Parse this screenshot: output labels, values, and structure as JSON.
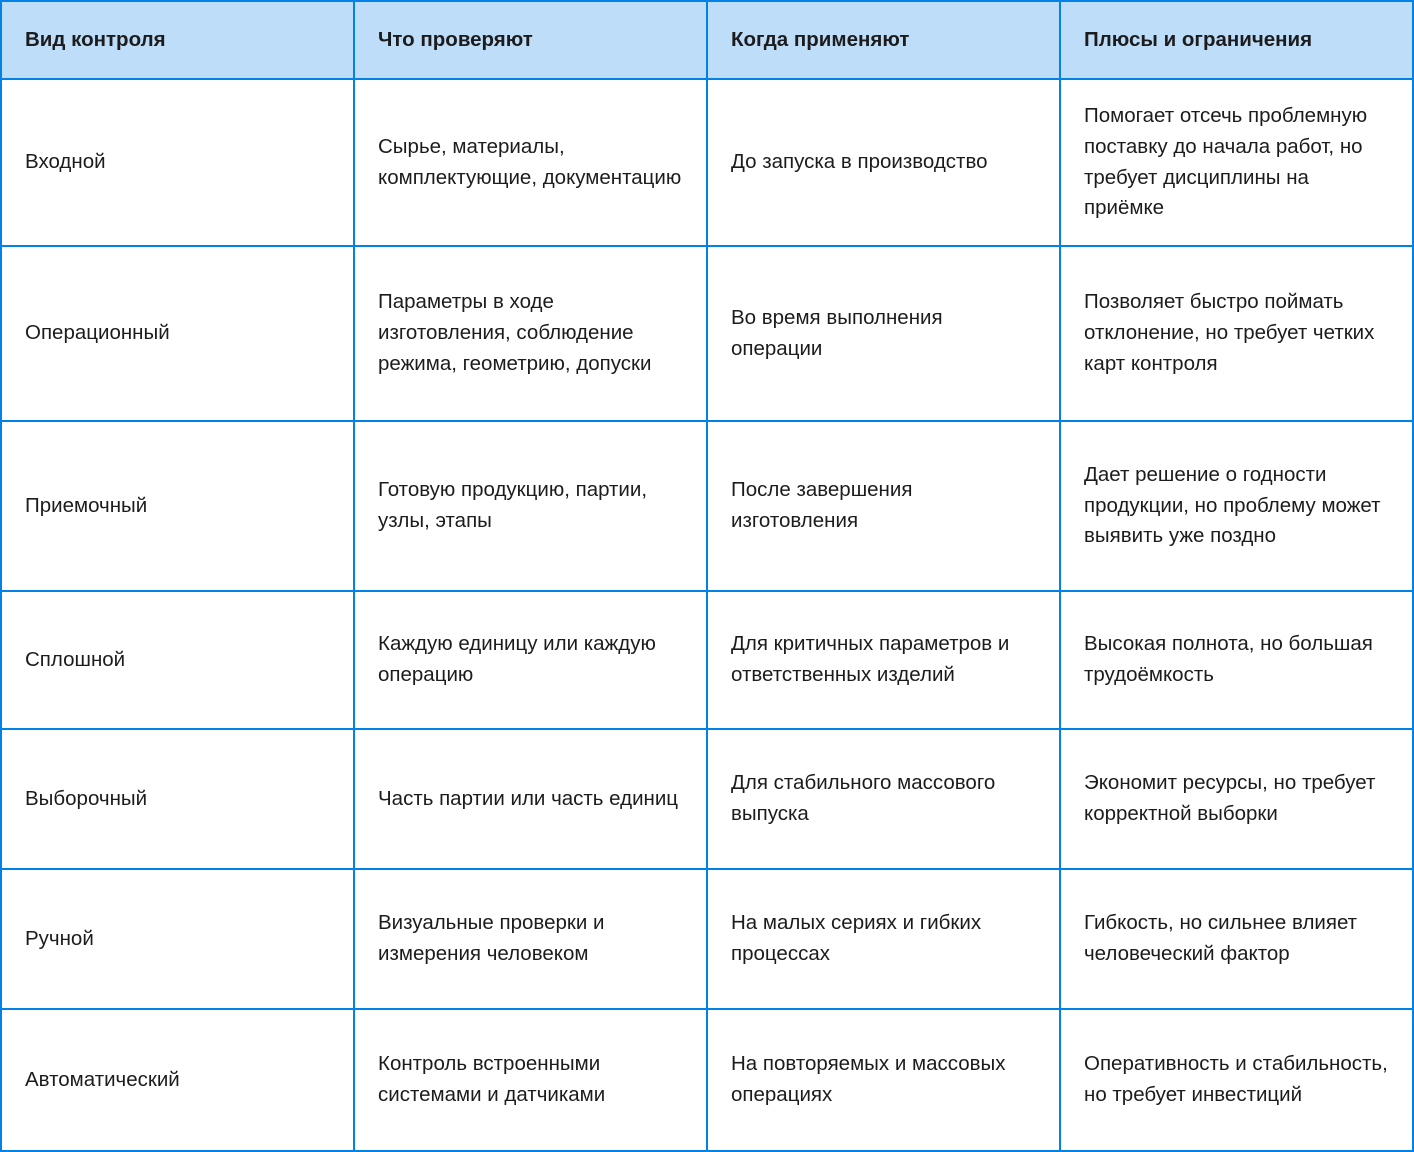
{
  "table": {
    "columns": [
      "Вид контроля",
      "Что проверяют",
      "Когда применяют",
      "Плюсы и ограничения"
    ],
    "rows": [
      {
        "cells": [
          "Входной",
          "Сырье, материалы, комплектующие, документацию",
          "До запуска в производство",
          "Помогает отсечь проблемную поставку до начала работ, но требует дисциплины на приёмке"
        ]
      },
      {
        "cells": [
          "Операционный",
          "Параметры в ходе изготовления, соблюдение режима, геометрию, допуски",
          "Во время выполнения операции",
          "Позволяет быстро поймать отклонение, но требует четких карт контроля"
        ]
      },
      {
        "cells": [
          "Приемочный",
          "Готовую продукцию, партии, узлы, этапы",
          "После завершения изготовления",
          "Дает решение о годности продукции, но проблему может выявить уже поздно"
        ]
      },
      {
        "cells": [
          "Сплошной",
          "Каждую единицу или каждую операцию",
          "Для критичных параметров и ответственных изделий",
          "Высокая полнота, но большая трудоёмкость"
        ]
      },
      {
        "cells": [
          "Выборочный",
          "Часть партии или часть единиц",
          "Для стабильного массового выпуска",
          "Экономит ресурсы, но требует корректной выборки"
        ]
      },
      {
        "cells": [
          "Ручной",
          "Визуальные проверки и измерения человеком",
          "На малых сериях и гибких процессах",
          "Гибкость, но сильнее влияет человеческий фактор"
        ]
      },
      {
        "cells": [
          "Автоматический",
          "Контроль встроенными системами и датчиками",
          "На повторяемых и массовых операциях",
          "Оперативность и стабильность, но требует инвестиций"
        ]
      }
    ]
  },
  "colors": {
    "border": "#0281E6",
    "header_bg": "#BEDDF8",
    "cell_bg": "#FFFFFF",
    "text": "#1C1C1E"
  }
}
